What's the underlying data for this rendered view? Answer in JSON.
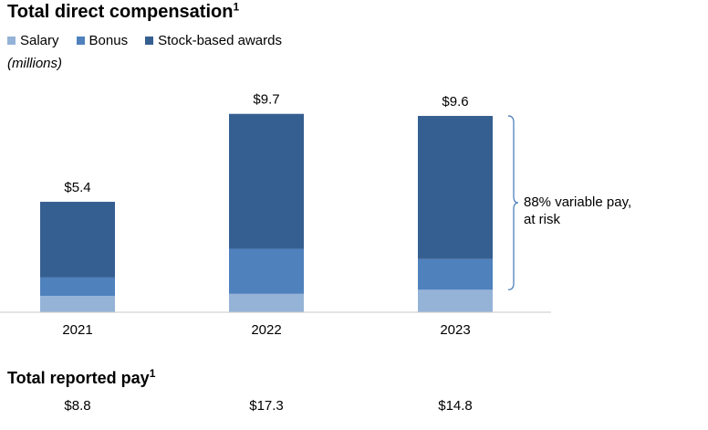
{
  "header": {
    "title": "Total direct compensation",
    "title_footnote": "1",
    "units": "(millions)"
  },
  "legend": [
    {
      "name": "Salary",
      "color": "#95b3d7"
    },
    {
      "name": "Bonus",
      "color": "#4f81bd"
    },
    {
      "name": "Stock-based awards",
      "color": "#365f91"
    }
  ],
  "chart_data": {
    "type": "bar",
    "stacked": true,
    "categories": [
      "2021",
      "2022",
      "2023"
    ],
    "series": [
      {
        "name": "Salary",
        "values": [
          0.8,
          0.9,
          1.1
        ],
        "color": "#95b3d7"
      },
      {
        "name": "Bonus",
        "values": [
          0.9,
          2.2,
          1.5
        ],
        "color": "#4f81bd"
      },
      {
        "name": "Stock-based awards",
        "values": [
          3.7,
          6.6,
          7.0
        ],
        "color": "#365f91"
      }
    ],
    "totals": [
      5.4,
      9.7,
      9.6
    ],
    "total_labels": [
      "$5.4",
      "$9.7",
      "$9.6"
    ],
    "ylim": [
      0,
      10
    ],
    "grid": false,
    "legend_position": "top-left",
    "annotation": {
      "text_lines": [
        "88% variable pay,",
        "at risk"
      ],
      "category_index": 2
    }
  },
  "reported": {
    "title": "Total reported pay",
    "title_footnote": "1",
    "values": [
      "$8.8",
      "$17.3",
      "$14.8"
    ]
  }
}
